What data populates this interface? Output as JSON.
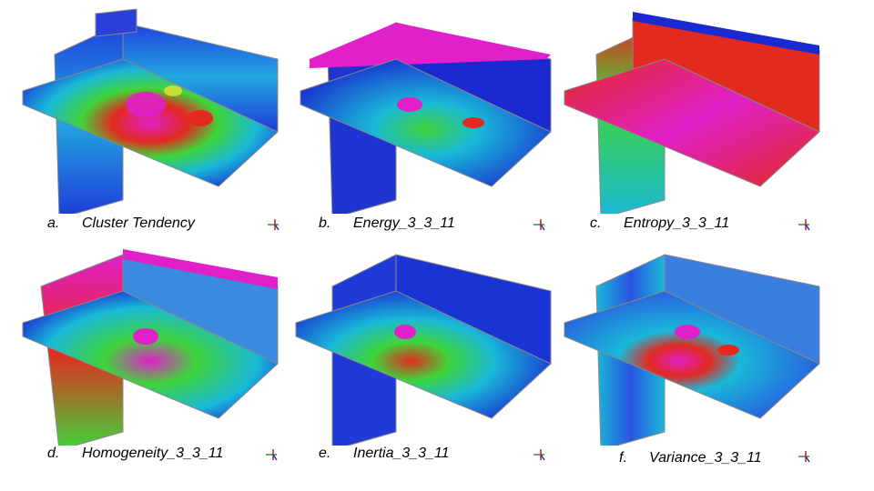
{
  "panels": [
    {
      "letter": "a.",
      "title": "Cluster Tendency",
      "palette": "cluster"
    },
    {
      "letter": "b.",
      "title": "Energy_3_3_11",
      "palette": "energy"
    },
    {
      "letter": "c.",
      "title": "Entropy_3_3_11",
      "palette": "entropy"
    },
    {
      "letter": "d.",
      "title": "Homogeneity_3_3_11",
      "palette": "homog"
    },
    {
      "letter": "e.",
      "title": "Inertia_3_3_11",
      "palette": "inertia"
    },
    {
      "letter": "f.",
      "title": "Variance_3_3_11",
      "palette": "variance"
    }
  ],
  "colors": {
    "deep_blue": "#1a2fd6",
    "cyan": "#19b8d8",
    "green": "#3fd43a",
    "yellow": "#e8e234",
    "red": "#e32a1f",
    "magenta": "#e020c8"
  }
}
